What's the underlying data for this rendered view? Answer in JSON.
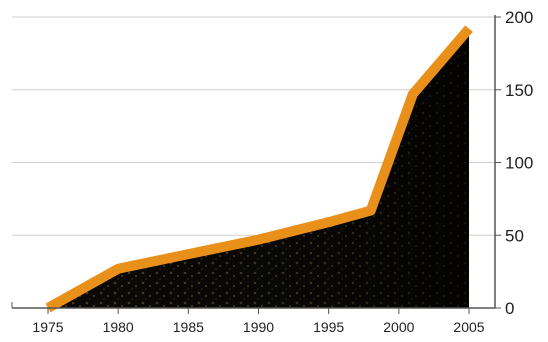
{
  "chart_data": {
    "type": "area",
    "title": "",
    "xlabel": "",
    "ylabel": "",
    "x": [
      1975,
      1980,
      1985,
      1990,
      1995,
      1998,
      2001,
      2005
    ],
    "series": [
      {
        "values": [
          0,
          27,
          37,
          47,
          59,
          67,
          147,
          192
        ]
      }
    ],
    "x_ticks": [
      "1975",
      "1980",
      "1985",
      "1990",
      "1995",
      "2000",
      "2005"
    ],
    "y_ticks": [
      "0",
      "50",
      "100",
      "150",
      "200"
    ],
    "xlim": [
      1975,
      2005
    ],
    "ylim": [
      0,
      200
    ],
    "grid": "horizontal",
    "y_axis_side": "right",
    "colors": {
      "line": "#E8901A",
      "fill_dark": "#0c0b08",
      "fill_texture": "#8a7a52",
      "grid": "#cfcfcf",
      "axis": "#555555"
    }
  }
}
